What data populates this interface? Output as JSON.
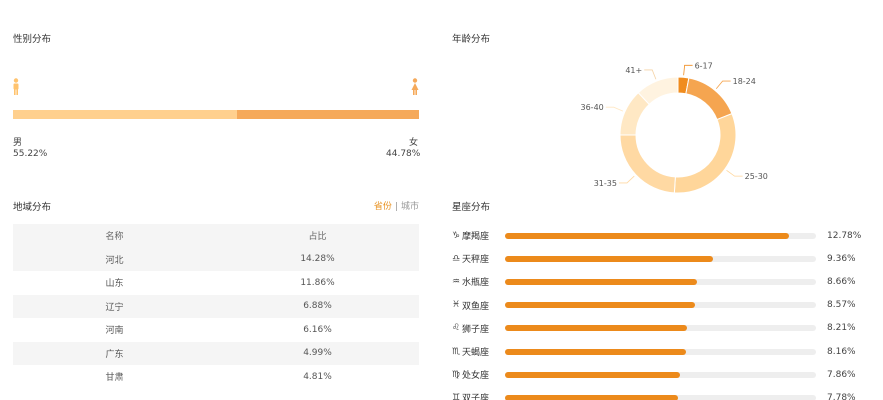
{
  "gender": {
    "title": "性别分布",
    "male_label": "男",
    "male_pct": "55.22%",
    "female_label": "女",
    "female_pct": "44.78%",
    "male_value": 55.22,
    "female_value": 44.78,
    "male_color": "#ffd08e",
    "female_color": "#f5a95a"
  },
  "region": {
    "title": "地域分布",
    "tab_province": "省份",
    "tab_separator": "|",
    "tab_city": "城市",
    "col_name": "名称",
    "col_pct": "占比",
    "rows": [
      {
        "name": "河北",
        "pct": "14.28%"
      },
      {
        "name": "山东",
        "pct": "11.86%"
      },
      {
        "name": "辽宁",
        "pct": "6.88%"
      },
      {
        "name": "河南",
        "pct": "6.16%"
      },
      {
        "name": "广东",
        "pct": "4.99%"
      },
      {
        "name": "甘肃",
        "pct": "4.81%"
      }
    ]
  },
  "age": {
    "title": "年龄分布",
    "chart_data": {
      "type": "pie",
      "donut": true,
      "categories": [
        "6-17",
        "18-24",
        "25-30",
        "31-35",
        "36-40",
        "41+"
      ],
      "values": [
        3,
        16,
        32,
        24,
        13,
        12
      ],
      "colors": [
        "#f08c1e",
        "#f5a550",
        "#ffd69a",
        "#ffd9a3",
        "#ffe8c4",
        "#fff3e0"
      ]
    }
  },
  "constellation": {
    "title": "星座分布",
    "bar_color": "#ec8a1b",
    "track_color": "#eeeeee",
    "max_value": 14,
    "items": [
      {
        "symbol": "♑",
        "name": "摩羯座",
        "value": 12.78,
        "label": "12.78%"
      },
      {
        "symbol": "♎",
        "name": "天秤座",
        "value": 9.36,
        "label": "9.36%"
      },
      {
        "symbol": "♒",
        "name": "水瓶座",
        "value": 8.66,
        "label": "8.66%"
      },
      {
        "symbol": "♓",
        "name": "双鱼座",
        "value": 8.57,
        "label": "8.57%"
      },
      {
        "symbol": "♌",
        "name": "狮子座",
        "value": 8.21,
        "label": "8.21%"
      },
      {
        "symbol": "♏",
        "name": "天蝎座",
        "value": 8.16,
        "label": "8.16%"
      },
      {
        "symbol": "♍",
        "name": "处女座",
        "value": 7.86,
        "label": "7.86%"
      },
      {
        "symbol": "♊",
        "name": "双子座",
        "value": 7.78,
        "label": "7.78%"
      }
    ]
  }
}
